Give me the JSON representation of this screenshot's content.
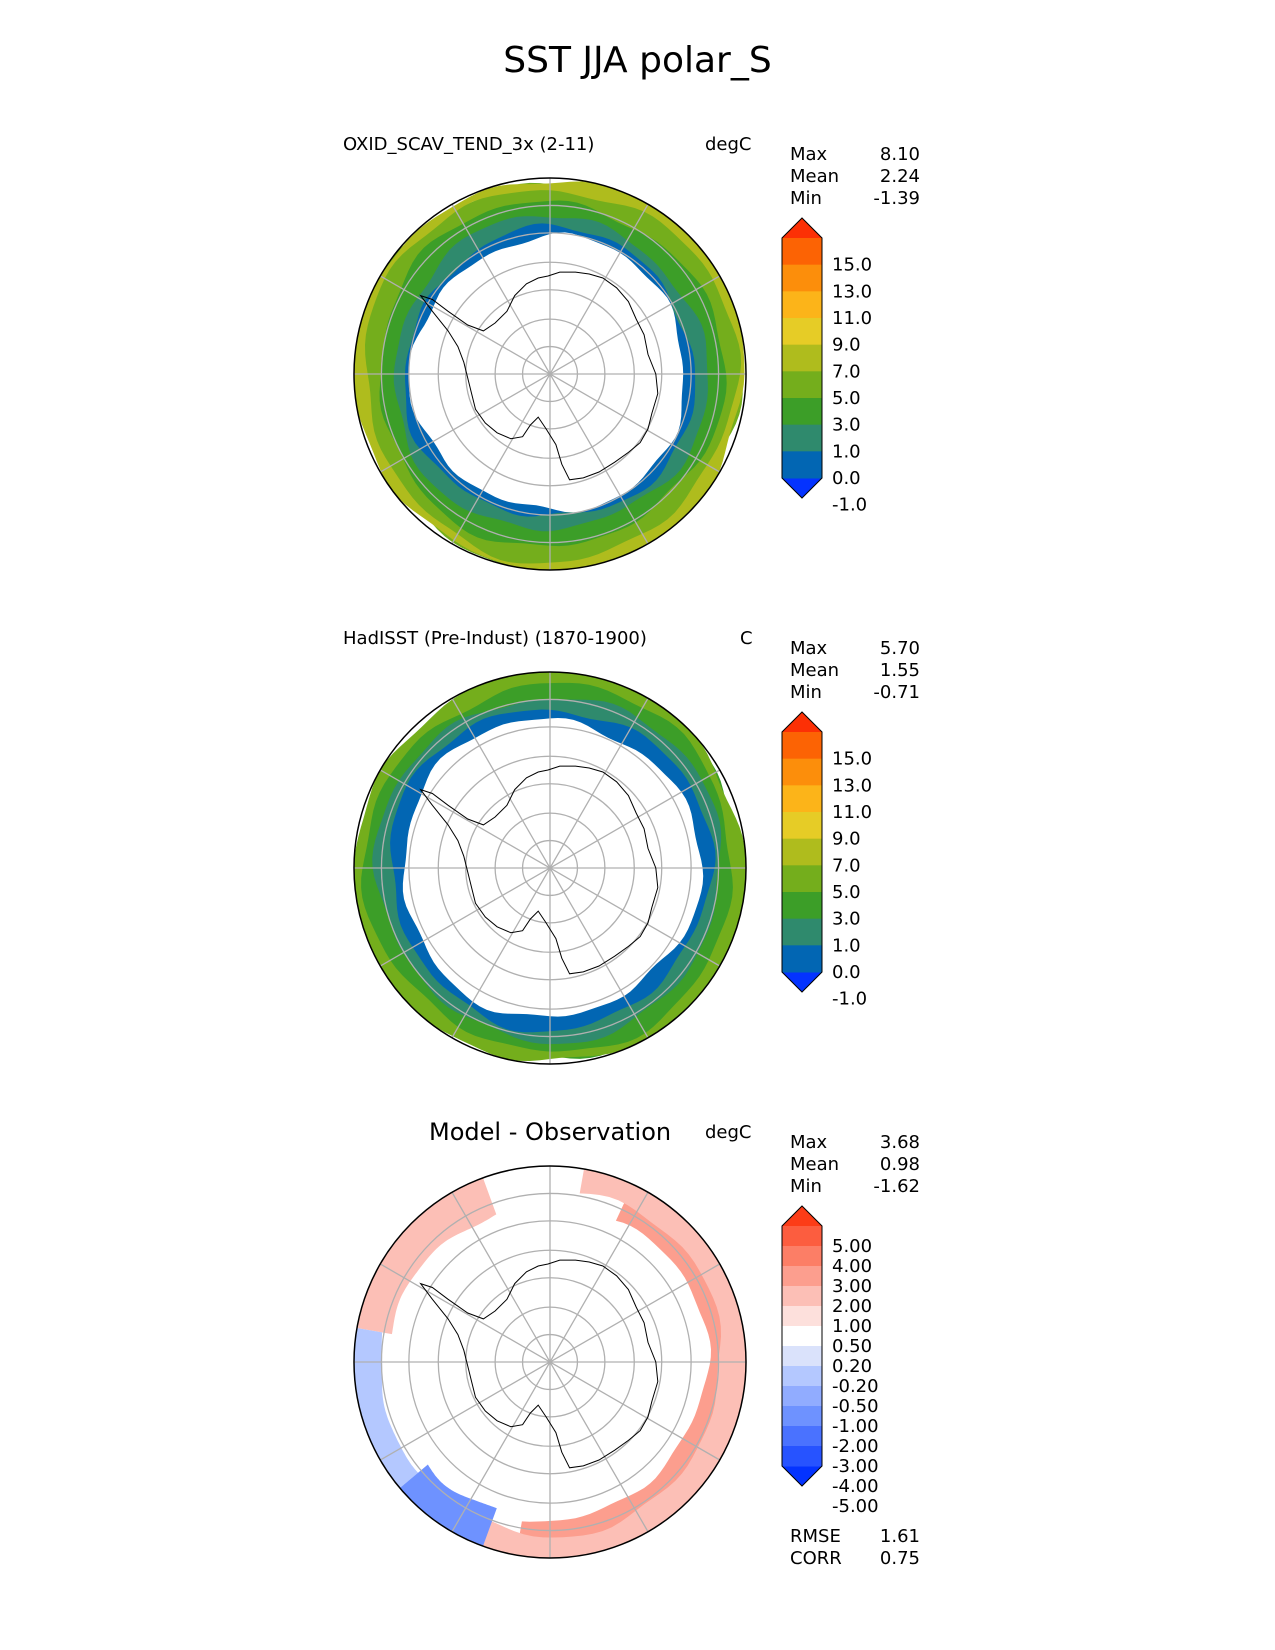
{
  "figure": {
    "title": "SST JJA polar_S"
  },
  "colors": {
    "sst_bins": [
      "#0433ff",
      "#0266b3",
      "#2f8a6d",
      "#3c9e28",
      "#74ae1c",
      "#afbc1d",
      "#e6cc26",
      "#fcb419",
      "#fc8e0b",
      "#fc6304",
      "#fc3005"
    ],
    "diff_bins": [
      "#0433ff",
      "#2753ff",
      "#4a72ff",
      "#6e92ff",
      "#91acff",
      "#b4c8ff",
      "#dae2fb",
      "#ffffff",
      "#fde0dc",
      "#fcbfb6",
      "#fc9e8e",
      "#fc7e66",
      "#fc5d3f",
      "#fc3c17"
    ],
    "grid": "#b0b0b0",
    "coast": "#000000"
  },
  "chart_data": [
    {
      "type": "heatmap",
      "projection": "south-polar-stereographic",
      "title": "OXID_SCAV_TEND_3x (2-11)",
      "units": "degC",
      "stats": [
        {
          "label": "Max",
          "value": "8.10"
        },
        {
          "label": "Mean",
          "value": "2.24"
        },
        {
          "label": "Min",
          "value": "-1.39"
        }
      ],
      "colorbar_ticks": [
        "15.0",
        "13.0",
        "11.0",
        "9.0",
        "7.0",
        "5.0",
        "3.0",
        "1.0",
        "0.0",
        "-1.0"
      ],
      "colorbar_extend": "both",
      "field_bands": [
        {
          "level": 1,
          "inner": 0.7,
          "outer": 0.8
        },
        {
          "level": 2,
          "inner": 0.74,
          "outer": 0.86
        },
        {
          "level": 3,
          "inner": 0.8,
          "outer": 0.93
        },
        {
          "level": 4,
          "inner": 0.88,
          "outer": 0.98
        },
        {
          "level": 5,
          "inner": 0.95,
          "outer": 1.0
        }
      ]
    },
    {
      "type": "heatmap",
      "projection": "south-polar-stereographic",
      "title": "HadISST (Pre-Indust) (1870-1900)",
      "units": "C",
      "stats": [
        {
          "label": "Max",
          "value": "5.70"
        },
        {
          "label": "Mean",
          "value": "1.55"
        },
        {
          "label": "Min",
          "value": "-0.71"
        }
      ],
      "colorbar_ticks": [
        "15.0",
        "13.0",
        "11.0",
        "9.0",
        "7.0",
        "5.0",
        "3.0",
        "1.0",
        "0.0",
        "-1.0"
      ],
      "colorbar_extend": "both",
      "field_bands": [
        {
          "level": 1,
          "inner": 0.76,
          "outer": 0.86
        },
        {
          "level": 2,
          "inner": 0.82,
          "outer": 0.92
        },
        {
          "level": 3,
          "inner": 0.88,
          "outer": 0.97
        },
        {
          "level": 4,
          "inner": 0.94,
          "outer": 1.0
        }
      ]
    },
    {
      "type": "heatmap",
      "projection": "south-polar-stereographic",
      "title": "Model - Observation",
      "units": "degC",
      "stats": [
        {
          "label": "Max",
          "value": "3.68"
        },
        {
          "label": "Mean",
          "value": "0.98"
        },
        {
          "label": "Min",
          "value": "-1.62"
        }
      ],
      "extra_stats": [
        {
          "label": "RMSE",
          "value": "1.61"
        },
        {
          "label": "CORR",
          "value": "0.75"
        }
      ],
      "colorbar_ticks": [
        "5.00",
        "4.00",
        "3.00",
        "2.00",
        "1.00",
        "0.50",
        "0.20",
        "-0.20",
        "-0.50",
        "-1.00",
        "-2.00",
        "-3.00",
        "-4.00",
        "-5.00"
      ],
      "colorbar_extend": "both"
    }
  ]
}
